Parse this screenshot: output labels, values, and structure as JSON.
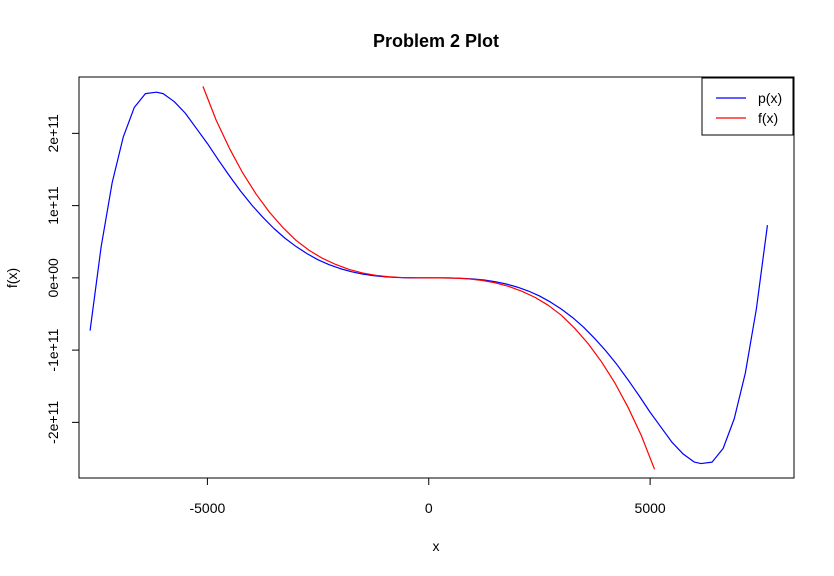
{
  "chart_data": {
    "type": "line",
    "title": "Problem 2 Plot",
    "xlabel": "x",
    "ylabel": "f(x)",
    "xlim": [
      -7900,
      8250
    ],
    "ylim": [
      -277000000000.0,
      278000000000.0
    ],
    "x_ticks": [
      {
        "value": -5000,
        "label": "-5000"
      },
      {
        "value": 0,
        "label": "0"
      },
      {
        "value": 5000,
        "label": "5000"
      }
    ],
    "y_ticks": [
      {
        "value": -200000000000.0,
        "label": "-2e+11"
      },
      {
        "value": -100000000000.0,
        "label": "-1e+11"
      },
      {
        "value": 0,
        "label": "0e+00"
      },
      {
        "value": 100000000000.0,
        "label": "1e+11"
      },
      {
        "value": 200000000000.0,
        "label": "2e+11"
      }
    ],
    "grid": false,
    "legend_position": "top-right",
    "series": [
      {
        "name": "p(x)",
        "color": "#0000ff",
        "x": [
          -7650,
          -7400,
          -7150,
          -6900,
          -6650,
          -6400,
          -6150,
          -6000,
          -5750,
          -5500,
          -5250,
          -5000,
          -4750,
          -4500,
          -4250,
          -4000,
          -3750,
          -3500,
          -3250,
          -3000,
          -2750,
          -2500,
          -2250,
          -2000,
          -1750,
          -1500,
          -1250,
          -1000,
          -750,
          -500,
          -250,
          0,
          250,
          500,
          750,
          1000,
          1250,
          1500,
          1750,
          2000,
          2250,
          2500,
          2750,
          3000,
          3250,
          3500,
          3750,
          4000,
          4250,
          4500,
          4750,
          5000,
          5250,
          5500,
          5750,
          6000,
          6150,
          6400,
          6650,
          6900,
          7150,
          7400,
          7650
        ],
        "y": [
          -73000000000,
          43000000000,
          132000000000,
          195000000000,
          236000000000,
          255000000000,
          257000000000,
          255000000000,
          244000000000,
          228000000000,
          207000000000,
          186000000000,
          163000000000,
          141000000000,
          120000000000,
          101000000000,
          84000000000,
          68500000000,
          55000000000,
          43500000000,
          33500000000,
          25000000000,
          18200000000,
          12800000000,
          8500000000,
          5300000000,
          3000000000,
          1500000000,
          600000000,
          200000000,
          30000000,
          0,
          -30000000,
          -200000000,
          -600000000,
          -1500000000,
          -3000000000,
          -5300000000,
          -8500000000,
          -12800000000,
          -18200000000,
          -25000000000,
          -33500000000,
          -43500000000,
          -55000000000,
          -68500000000,
          -84000000000,
          -101000000000,
          -120000000000,
          -141000000000,
          -163000000000,
          -186000000000,
          -207000000000,
          -228000000000,
          -244000000000,
          -255000000000,
          -257000000000,
          -255000000000,
          -236000000000,
          -195000000000,
          -132000000000,
          -43000000000,
          73000000000
        ]
      },
      {
        "name": "f(x)",
        "color": "#ff0000",
        "x": [
          -5100,
          -4800,
          -4500,
          -4200,
          -3900,
          -3600,
          -3300,
          -3000,
          -2700,
          -2400,
          -2100,
          -1800,
          -1500,
          -1200,
          -900,
          -600,
          -300,
          0,
          300,
          600,
          900,
          1200,
          1500,
          1800,
          2100,
          2400,
          2700,
          3000,
          3300,
          3600,
          3900,
          4200,
          4500,
          4800,
          5100
        ],
        "y": [
          265000000000,
          218000000000,
          179000000000,
          145000000000,
          116000000000,
          91000000000,
          70000000000,
          52000000000,
          38000000000,
          27000000000,
          18500000000,
          11700000000,
          6800000000,
          3500000000,
          1500000000,
          400000000,
          50000000,
          0,
          -50000000,
          -400000000,
          -1500000000,
          -3500000000,
          -6800000000,
          -11700000000,
          -18500000000,
          -27000000000,
          -38000000000,
          -52000000000,
          -70000000000,
          -91000000000,
          -116000000000,
          -145000000000,
          -179000000000,
          -218000000000,
          -265000000000
        ]
      }
    ]
  }
}
